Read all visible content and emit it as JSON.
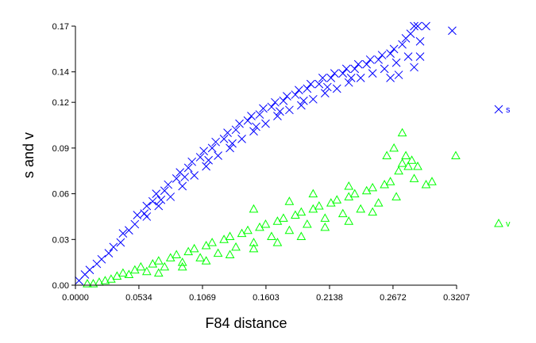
{
  "chart_data": {
    "type": "scatter",
    "title": "",
    "xlabel": "F84 distance",
    "ylabel": "s and v",
    "xlim": [
      0,
      0.3207
    ],
    "ylim": [
      0,
      0.17
    ],
    "xticks": [
      "0.0000",
      "0.0534",
      "0.1069",
      "0.1603",
      "0.2138",
      "0.2672",
      "0.3207"
    ],
    "yticks": [
      "0.00",
      "0.03",
      "0.06",
      "0.09",
      "0.12",
      "0.14",
      "0.17"
    ],
    "grid": false,
    "legend_position": "right",
    "series": [
      {
        "name": "s",
        "marker": "x",
        "color": "#0000ff",
        "points": [
          [
            0.003,
            0.003
          ],
          [
            0.008,
            0.007
          ],
          [
            0.012,
            0.01
          ],
          [
            0.018,
            0.014
          ],
          [
            0.022,
            0.017
          ],
          [
            0.028,
            0.021
          ],
          [
            0.032,
            0.025
          ],
          [
            0.038,
            0.028
          ],
          [
            0.04,
            0.034
          ],
          [
            0.045,
            0.036
          ],
          [
            0.05,
            0.04
          ],
          [
            0.052,
            0.046
          ],
          [
            0.058,
            0.047
          ],
          [
            0.06,
            0.052
          ],
          [
            0.065,
            0.055
          ],
          [
            0.068,
            0.06
          ],
          [
            0.07,
            0.052
          ],
          [
            0.075,
            0.062
          ],
          [
            0.078,
            0.066
          ],
          [
            0.08,
            0.058
          ],
          [
            0.085,
            0.07
          ],
          [
            0.088,
            0.074
          ],
          [
            0.09,
            0.065
          ],
          [
            0.095,
            0.077
          ],
          [
            0.098,
            0.081
          ],
          [
            0.1,
            0.072
          ],
          [
            0.105,
            0.084
          ],
          [
            0.108,
            0.088
          ],
          [
            0.11,
            0.078
          ],
          [
            0.115,
            0.09
          ],
          [
            0.118,
            0.094
          ],
          [
            0.12,
            0.085
          ],
          [
            0.125,
            0.096
          ],
          [
            0.128,
            0.1
          ],
          [
            0.13,
            0.09
          ],
          [
            0.135,
            0.102
          ],
          [
            0.138,
            0.106
          ],
          [
            0.14,
            0.096
          ],
          [
            0.145,
            0.108
          ],
          [
            0.148,
            0.111
          ],
          [
            0.15,
            0.101
          ],
          [
            0.155,
            0.112
          ],
          [
            0.158,
            0.116
          ],
          [
            0.16,
            0.106
          ],
          [
            0.165,
            0.117
          ],
          [
            0.168,
            0.12
          ],
          [
            0.17,
            0.111
          ],
          [
            0.175,
            0.121
          ],
          [
            0.178,
            0.124
          ],
          [
            0.18,
            0.115
          ],
          [
            0.185,
            0.125
          ],
          [
            0.188,
            0.128
          ],
          [
            0.19,
            0.118
          ],
          [
            0.195,
            0.129
          ],
          [
            0.198,
            0.132
          ],
          [
            0.2,
            0.122
          ],
          [
            0.205,
            0.132
          ],
          [
            0.208,
            0.136
          ],
          [
            0.21,
            0.126
          ],
          [
            0.215,
            0.136
          ],
          [
            0.218,
            0.139
          ],
          [
            0.22,
            0.129
          ],
          [
            0.225,
            0.139
          ],
          [
            0.228,
            0.142
          ],
          [
            0.23,
            0.133
          ],
          [
            0.235,
            0.142
          ],
          [
            0.238,
            0.145
          ],
          [
            0.24,
            0.136
          ],
          [
            0.245,
            0.145
          ],
          [
            0.248,
            0.148
          ],
          [
            0.25,
            0.139
          ],
          [
            0.255,
            0.148
          ],
          [
            0.258,
            0.151
          ],
          [
            0.26,
            0.142
          ],
          [
            0.265,
            0.152
          ],
          [
            0.268,
            0.155
          ],
          [
            0.27,
            0.146
          ],
          [
            0.275,
            0.158
          ],
          [
            0.278,
            0.162
          ],
          [
            0.282,
            0.165
          ],
          [
            0.285,
            0.17
          ],
          [
            0.288,
            0.17
          ],
          [
            0.29,
            0.16
          ],
          [
            0.28,
            0.15
          ],
          [
            0.295,
            0.17
          ],
          [
            0.317,
            0.167
          ],
          [
            0.285,
            0.143
          ],
          [
            0.272,
            0.138
          ],
          [
            0.265,
            0.136
          ],
          [
            0.29,
            0.15
          ],
          [
            0.06,
            0.045
          ],
          [
            0.072,
            0.056
          ],
          [
            0.092,
            0.071
          ],
          [
            0.112,
            0.082
          ],
          [
            0.132,
            0.093
          ],
          [
            0.152,
            0.104
          ],
          [
            0.172,
            0.114
          ],
          [
            0.192,
            0.121
          ],
          [
            0.212,
            0.13
          ],
          [
            0.232,
            0.136
          ]
        ]
      },
      {
        "name": "v",
        "marker": "triangle",
        "color": "#00ff00",
        "points": [
          [
            0.01,
            0.001
          ],
          [
            0.015,
            0.001
          ],
          [
            0.02,
            0.002
          ],
          [
            0.025,
            0.003
          ],
          [
            0.03,
            0.004
          ],
          [
            0.035,
            0.006
          ],
          [
            0.04,
            0.008
          ],
          [
            0.045,
            0.007
          ],
          [
            0.05,
            0.01
          ],
          [
            0.055,
            0.012
          ],
          [
            0.06,
            0.009
          ],
          [
            0.065,
            0.014
          ],
          [
            0.07,
            0.016
          ],
          [
            0.075,
            0.012
          ],
          [
            0.08,
            0.018
          ],
          [
            0.085,
            0.02
          ],
          [
            0.09,
            0.015
          ],
          [
            0.095,
            0.022
          ],
          [
            0.1,
            0.024
          ],
          [
            0.105,
            0.018
          ],
          [
            0.11,
            0.026
          ],
          [
            0.115,
            0.028
          ],
          [
            0.12,
            0.021
          ],
          [
            0.125,
            0.03
          ],
          [
            0.13,
            0.032
          ],
          [
            0.135,
            0.025
          ],
          [
            0.14,
            0.034
          ],
          [
            0.145,
            0.036
          ],
          [
            0.15,
            0.028
          ],
          [
            0.155,
            0.038
          ],
          [
            0.16,
            0.04
          ],
          [
            0.165,
            0.032
          ],
          [
            0.17,
            0.042
          ],
          [
            0.175,
            0.044
          ],
          [
            0.18,
            0.036
          ],
          [
            0.185,
            0.046
          ],
          [
            0.19,
            0.048
          ],
          [
            0.195,
            0.04
          ],
          [
            0.2,
            0.05
          ],
          [
            0.205,
            0.052
          ],
          [
            0.21,
            0.044
          ],
          [
            0.215,
            0.054
          ],
          [
            0.22,
            0.056
          ],
          [
            0.225,
            0.047
          ],
          [
            0.23,
            0.058
          ],
          [
            0.235,
            0.06
          ],
          [
            0.24,
            0.05
          ],
          [
            0.245,
            0.062
          ],
          [
            0.25,
            0.064
          ],
          [
            0.255,
            0.054
          ],
          [
            0.26,
            0.066
          ],
          [
            0.265,
            0.068
          ],
          [
            0.27,
            0.058
          ],
          [
            0.272,
            0.075
          ],
          [
            0.275,
            0.08
          ],
          [
            0.278,
            0.085
          ],
          [
            0.28,
            0.078
          ],
          [
            0.283,
            0.082
          ],
          [
            0.285,
            0.07
          ],
          [
            0.288,
            0.078
          ],
          [
            0.268,
            0.09
          ],
          [
            0.262,
            0.085
          ],
          [
            0.275,
            0.1
          ],
          [
            0.295,
            0.066
          ],
          [
            0.3,
            0.068
          ],
          [
            0.32,
            0.085
          ],
          [
            0.18,
            0.055
          ],
          [
            0.2,
            0.06
          ],
          [
            0.15,
            0.05
          ],
          [
            0.23,
            0.065
          ],
          [
            0.07,
            0.008
          ],
          [
            0.09,
            0.012
          ],
          [
            0.11,
            0.016
          ],
          [
            0.13,
            0.02
          ],
          [
            0.15,
            0.024
          ],
          [
            0.17,
            0.028
          ],
          [
            0.19,
            0.032
          ],
          [
            0.21,
            0.038
          ],
          [
            0.23,
            0.042
          ],
          [
            0.25,
            0.048
          ]
        ]
      }
    ]
  }
}
